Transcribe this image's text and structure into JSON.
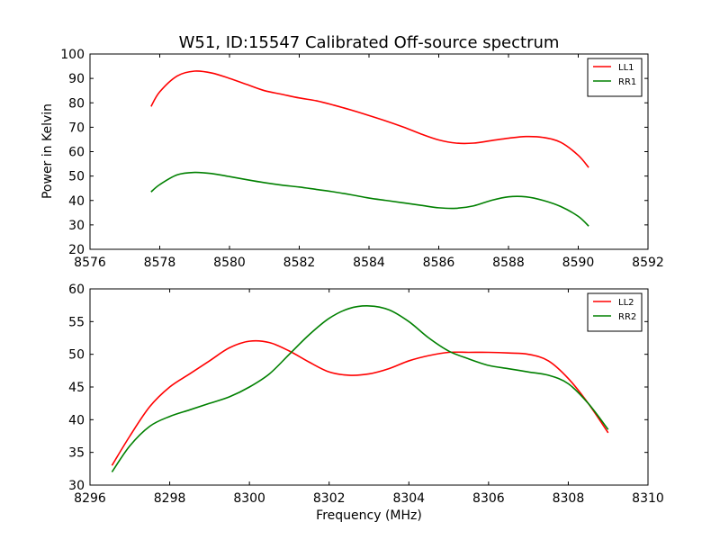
{
  "figure": {
    "title": "W51, ID:15547 Calibrated Off-source spectrum",
    "xlabel": "Frequency (MHz)",
    "ylabel": "Power in Kelvin"
  },
  "chart_data": [
    {
      "type": "line",
      "title": "W51, ID:15547 Calibrated Off-source spectrum",
      "xlabel": "",
      "ylabel": "Power in Kelvin",
      "xlim": [
        8576,
        8592
      ],
      "ylim": [
        20,
        100
      ],
      "xticks": [
        8576,
        8578,
        8580,
        8582,
        8584,
        8586,
        8588,
        8590,
        8592
      ],
      "yticks": [
        20,
        30,
        40,
        50,
        60,
        70,
        80,
        90,
        100
      ],
      "legend": "top-right",
      "grid": false,
      "series": [
        {
          "name": "LL1",
          "color": "#ff0000",
          "x": [
            8577.75,
            8578.0,
            8578.5,
            8579.0,
            8579.5,
            8580.0,
            8580.5,
            8581.0,
            8581.5,
            8582.0,
            8582.5,
            8583.0,
            8583.5,
            8584.0,
            8584.5,
            8585.0,
            8585.5,
            8586.0,
            8586.5,
            8587.0,
            8587.5,
            8588.0,
            8588.5,
            8589.0,
            8589.5,
            8590.0,
            8590.3
          ],
          "values": [
            78.5,
            84.5,
            91.0,
            93.0,
            92.2,
            90.0,
            87.5,
            85.0,
            83.5,
            82.0,
            80.8,
            79.0,
            77.0,
            74.8,
            72.5,
            70.0,
            67.2,
            64.8,
            63.5,
            63.5,
            64.5,
            65.5,
            66.2,
            65.8,
            63.8,
            58.5,
            53.5
          ]
        },
        {
          "name": "RR1",
          "color": "#008000",
          "x": [
            8577.75,
            8578.0,
            8578.5,
            8579.0,
            8579.5,
            8580.0,
            8580.5,
            8581.0,
            8581.5,
            8582.0,
            8582.5,
            8583.0,
            8583.5,
            8584.0,
            8584.5,
            8585.0,
            8585.5,
            8586.0,
            8586.5,
            8587.0,
            8587.5,
            8588.0,
            8588.5,
            8589.0,
            8589.5,
            8590.0,
            8590.3
          ],
          "values": [
            43.5,
            46.5,
            50.5,
            51.5,
            51.0,
            49.8,
            48.5,
            47.3,
            46.3,
            45.5,
            44.5,
            43.5,
            42.3,
            41.0,
            40.0,
            39.0,
            38.0,
            37.0,
            36.8,
            37.8,
            40.0,
            41.5,
            41.5,
            40.0,
            37.5,
            33.5,
            29.5
          ]
        }
      ]
    },
    {
      "type": "line",
      "title": "",
      "xlabel": "Frequency (MHz)",
      "ylabel": "",
      "xlim": [
        8296,
        8310
      ],
      "ylim": [
        30,
        60
      ],
      "xticks": [
        8296,
        8298,
        8300,
        8302,
        8304,
        8306,
        8308,
        8310
      ],
      "yticks": [
        30,
        35,
        40,
        45,
        50,
        55,
        60
      ],
      "legend": "top-right",
      "grid": false,
      "series": [
        {
          "name": "LL2",
          "color": "#ff0000",
          "x": [
            8296.55,
            8297.0,
            8297.5,
            8298.0,
            8298.5,
            8299.0,
            8299.5,
            8300.0,
            8300.5,
            8301.0,
            8301.5,
            8302.0,
            8302.5,
            8303.0,
            8303.5,
            8304.0,
            8304.5,
            8305.0,
            8305.5,
            8306.0,
            8306.5,
            8307.0,
            8307.5,
            8308.0,
            8308.5,
            8309.0
          ],
          "values": [
            33.0,
            37.5,
            42.0,
            45.0,
            47.0,
            49.0,
            51.0,
            52.0,
            51.8,
            50.5,
            48.8,
            47.3,
            46.8,
            47.0,
            47.8,
            49.0,
            49.8,
            50.3,
            50.3,
            50.3,
            50.2,
            50.0,
            49.0,
            46.3,
            42.5,
            38.0
          ]
        },
        {
          "name": "RR2",
          "color": "#008000",
          "x": [
            8296.55,
            8297.0,
            8297.5,
            8298.0,
            8298.5,
            8299.0,
            8299.5,
            8300.0,
            8300.5,
            8301.0,
            8301.5,
            8302.0,
            8302.5,
            8303.0,
            8303.5,
            8304.0,
            8304.5,
            8305.0,
            8305.5,
            8306.0,
            8306.5,
            8307.0,
            8307.5,
            8308.0,
            8308.5,
            8309.0
          ],
          "values": [
            32.0,
            36.0,
            39.0,
            40.5,
            41.5,
            42.5,
            43.5,
            45.0,
            47.0,
            50.0,
            53.0,
            55.5,
            57.0,
            57.4,
            56.8,
            55.0,
            52.5,
            50.5,
            49.3,
            48.3,
            47.8,
            47.3,
            46.8,
            45.5,
            42.5,
            38.5
          ]
        }
      ]
    }
  ]
}
